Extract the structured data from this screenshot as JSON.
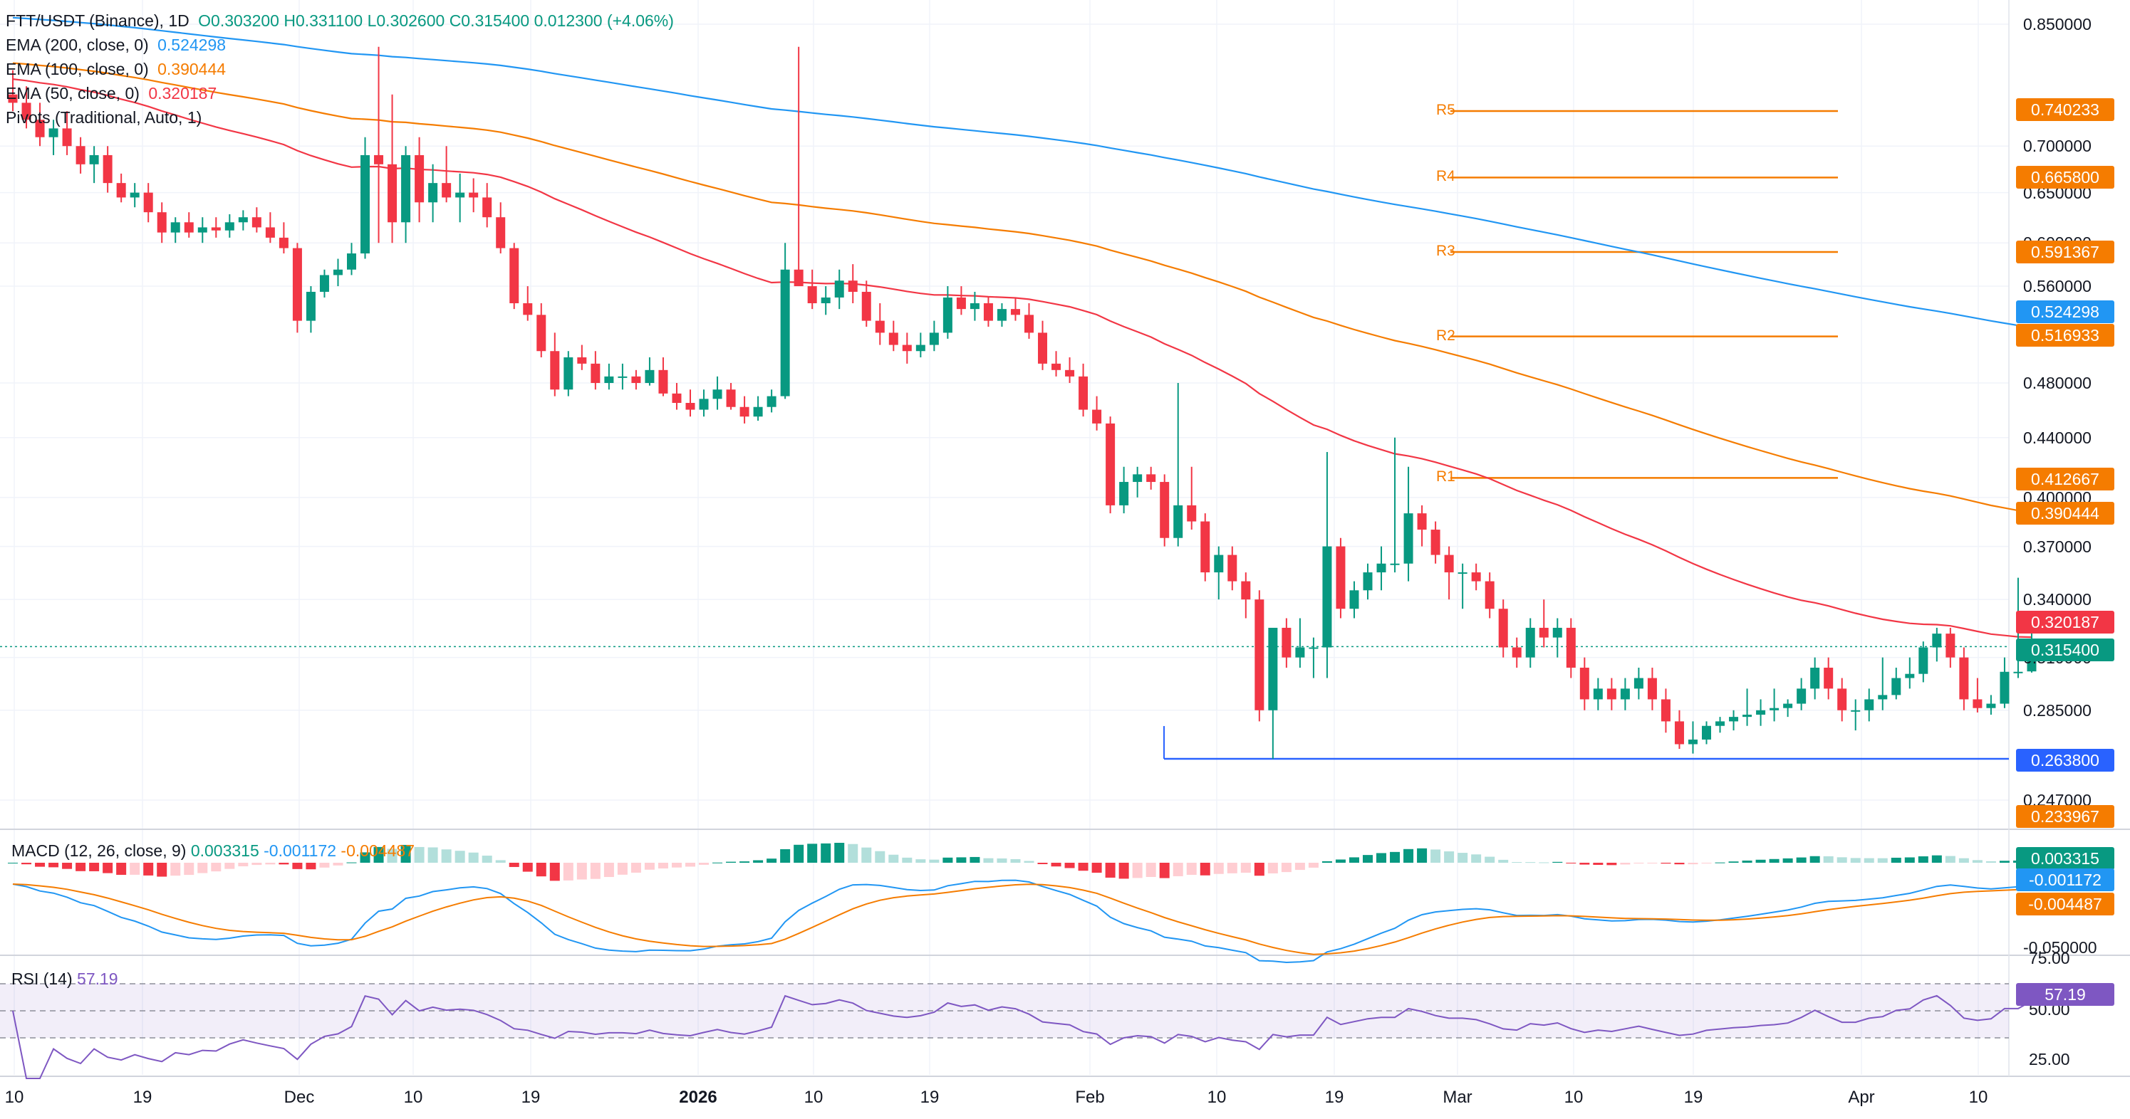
{
  "header": {
    "symbol": "FTT/USDT (Binance), 1D",
    "ohlc": "O0.303200  H0.331100  L0.302600  C0.315400  0.012300 (+4.06%)"
  },
  "indicators": {
    "ema200": {
      "label": "EMA (200, close, 0)",
      "value": "0.524298",
      "color": "#2196f3"
    },
    "ema100": {
      "label": "EMA (100, close, 0)",
      "value": "0.390444",
      "color": "#f57c00"
    },
    "ema50": {
      "label": "EMA (50, close, 0)",
      "value": "0.320187",
      "color": "#f23645"
    },
    "pivots": {
      "label": "Pivots (Traditional, Auto, 1)"
    },
    "macd": {
      "label": "MACD (12, 26, close, 9)",
      "hist": "0.003315",
      "macd": "-0.001172",
      "signal": "-0.004487"
    },
    "rsi": {
      "label": "RSI (14)",
      "value": "57.19"
    }
  },
  "price_axis": {
    "ticks": [
      "0.850000",
      "0.700000",
      "0.650000",
      "0.600000",
      "0.560000",
      "0.480000",
      "0.440000",
      "0.400000",
      "0.370000",
      "0.340000",
      "0.310000",
      "0.285000",
      "0.247000"
    ],
    "tags": [
      {
        "value": "0.740233",
        "color": "#f57c00"
      },
      {
        "value": "0.665800",
        "color": "#f57c00"
      },
      {
        "value": "0.591367",
        "color": "#f57c00"
      },
      {
        "value": "0.524298",
        "color": "#2196f3"
      },
      {
        "value": "0.516933",
        "color": "#f57c00"
      },
      {
        "value": "0.412667",
        "color": "#f57c00"
      },
      {
        "value": "0.390444",
        "color": "#f57c00"
      },
      {
        "value": "0.320187",
        "color": "#f23645"
      },
      {
        "value": "0.315400",
        "color": "#089981"
      },
      {
        "value": "0.263800",
        "color": "#2962ff"
      },
      {
        "value": "0.233967",
        "color": "#f57c00"
      }
    ]
  },
  "macd_axis": {
    "ticks": [
      "-0.050000"
    ],
    "tags": [
      {
        "value": "0.003315",
        "color": "#089981"
      },
      {
        "value": "-0.001172",
        "color": "#2196f3"
      },
      {
        "value": "-0.004487",
        "color": "#f57c00"
      }
    ]
  },
  "rsi_axis": {
    "ticks": [
      "75.00",
      "50.00",
      "25.00"
    ],
    "tags": [
      {
        "value": "57.19",
        "color": "#7e57c2"
      }
    ]
  },
  "pivots": [
    {
      "label": "R5",
      "value": 0.740233
    },
    {
      "label": "R4",
      "value": 0.6658
    },
    {
      "label": "R3",
      "value": 0.591367
    },
    {
      "label": "R2",
      "value": 0.516933
    },
    {
      "label": "R1",
      "value": 0.412667
    }
  ],
  "time_axis": [
    {
      "label": "10",
      "bold": false
    },
    {
      "label": "19",
      "bold": false
    },
    {
      "label": "Dec",
      "bold": false
    },
    {
      "label": "10",
      "bold": false
    },
    {
      "label": "19",
      "bold": false
    },
    {
      "label": "2026",
      "bold": true
    },
    {
      "label": "10",
      "bold": false
    },
    {
      "label": "19",
      "bold": false
    },
    {
      "label": "Feb",
      "bold": false
    },
    {
      "label": "10",
      "bold": false
    },
    {
      "label": "19",
      "bold": false
    },
    {
      "label": "Mar",
      "bold": false
    },
    {
      "label": "10",
      "bold": false
    },
    {
      "label": "19",
      "bold": false
    },
    {
      "label": "Apr",
      "bold": false
    },
    {
      "label": "10",
      "bold": false
    }
  ],
  "chart_data": {
    "type": "candlestick",
    "symbol": "FTT/USDT",
    "interval": "1D",
    "scale": "log",
    "x_start": "2025-11-10",
    "candles": [
      [
        0.76,
        0.79,
        0.74,
        0.75
      ],
      [
        0.75,
        0.77,
        0.72,
        0.73
      ],
      [
        0.73,
        0.75,
        0.7,
        0.71
      ],
      [
        0.71,
        0.73,
        0.69,
        0.72
      ],
      [
        0.72,
        0.74,
        0.69,
        0.7
      ],
      [
        0.7,
        0.71,
        0.67,
        0.68
      ],
      [
        0.68,
        0.7,
        0.66,
        0.69
      ],
      [
        0.69,
        0.7,
        0.65,
        0.66
      ],
      [
        0.66,
        0.67,
        0.64,
        0.645
      ],
      [
        0.645,
        0.66,
        0.635,
        0.65
      ],
      [
        0.65,
        0.66,
        0.62,
        0.63
      ],
      [
        0.63,
        0.64,
        0.6,
        0.61
      ],
      [
        0.61,
        0.625,
        0.6,
        0.62
      ],
      [
        0.62,
        0.63,
        0.605,
        0.61
      ],
      [
        0.61,
        0.625,
        0.6,
        0.615
      ],
      [
        0.615,
        0.625,
        0.605,
        0.612
      ],
      [
        0.612,
        0.628,
        0.605,
        0.62
      ],
      [
        0.62,
        0.632,
        0.612,
        0.625
      ],
      [
        0.625,
        0.635,
        0.61,
        0.615
      ],
      [
        0.615,
        0.63,
        0.6,
        0.605
      ],
      [
        0.605,
        0.62,
        0.59,
        0.595
      ],
      [
        0.595,
        0.6,
        0.52,
        0.53
      ],
      [
        0.53,
        0.56,
        0.52,
        0.555
      ],
      [
        0.555,
        0.575,
        0.55,
        0.57
      ],
      [
        0.57,
        0.585,
        0.56,
        0.575
      ],
      [
        0.575,
        0.6,
        0.57,
        0.59
      ],
      [
        0.59,
        0.71,
        0.585,
        0.69
      ],
      [
        0.69,
        0.82,
        0.6,
        0.68
      ],
      [
        0.68,
        0.76,
        0.6,
        0.62
      ],
      [
        0.62,
        0.7,
        0.6,
        0.69
      ],
      [
        0.69,
        0.71,
        0.62,
        0.64
      ],
      [
        0.64,
        0.68,
        0.62,
        0.66
      ],
      [
        0.66,
        0.7,
        0.64,
        0.645
      ],
      [
        0.645,
        0.67,
        0.62,
        0.65
      ],
      [
        0.65,
        0.665,
        0.63,
        0.645
      ],
      [
        0.645,
        0.66,
        0.615,
        0.625
      ],
      [
        0.625,
        0.64,
        0.59,
        0.595
      ],
      [
        0.595,
        0.6,
        0.54,
        0.545
      ],
      [
        0.545,
        0.56,
        0.53,
        0.535
      ],
      [
        0.535,
        0.545,
        0.5,
        0.505
      ],
      [
        0.505,
        0.52,
        0.47,
        0.475
      ],
      [
        0.475,
        0.505,
        0.47,
        0.5
      ],
      [
        0.5,
        0.51,
        0.49,
        0.495
      ],
      [
        0.495,
        0.505,
        0.475,
        0.48
      ],
      [
        0.48,
        0.495,
        0.475,
        0.485
      ],
      [
        0.485,
        0.495,
        0.475,
        0.485
      ],
      [
        0.485,
        0.49,
        0.475,
        0.48
      ],
      [
        0.48,
        0.5,
        0.478,
        0.49
      ],
      [
        0.49,
        0.5,
        0.47,
        0.472
      ],
      [
        0.472,
        0.48,
        0.46,
        0.465
      ],
      [
        0.465,
        0.475,
        0.455,
        0.46
      ],
      [
        0.46,
        0.475,
        0.455,
        0.468
      ],
      [
        0.468,
        0.485,
        0.46,
        0.475
      ],
      [
        0.475,
        0.48,
        0.46,
        0.462
      ],
      [
        0.462,
        0.47,
        0.45,
        0.455
      ],
      [
        0.455,
        0.47,
        0.452,
        0.462
      ],
      [
        0.462,
        0.475,
        0.458,
        0.47
      ],
      [
        0.47,
        0.6,
        0.468,
        0.575
      ],
      [
        0.575,
        0.82,
        0.56,
        0.56
      ],
      [
        0.56,
        0.575,
        0.54,
        0.545
      ],
      [
        0.545,
        0.56,
        0.535,
        0.55
      ],
      [
        0.55,
        0.575,
        0.54,
        0.565
      ],
      [
        0.565,
        0.58,
        0.545,
        0.555
      ],
      [
        0.555,
        0.565,
        0.525,
        0.53
      ],
      [
        0.53,
        0.545,
        0.51,
        0.52
      ],
      [
        0.52,
        0.53,
        0.505,
        0.51
      ],
      [
        0.51,
        0.52,
        0.495,
        0.505
      ],
      [
        0.505,
        0.52,
        0.5,
        0.51
      ],
      [
        0.51,
        0.53,
        0.505,
        0.52
      ],
      [
        0.52,
        0.56,
        0.515,
        0.55
      ],
      [
        0.55,
        0.56,
        0.535,
        0.54
      ],
      [
        0.54,
        0.555,
        0.53,
        0.545
      ],
      [
        0.545,
        0.55,
        0.525,
        0.53
      ],
      [
        0.53,
        0.545,
        0.525,
        0.54
      ],
      [
        0.54,
        0.55,
        0.53,
        0.535
      ],
      [
        0.535,
        0.545,
        0.515,
        0.52
      ],
      [
        0.52,
        0.53,
        0.49,
        0.495
      ],
      [
        0.495,
        0.505,
        0.485,
        0.49
      ],
      [
        0.49,
        0.5,
        0.48,
        0.485
      ],
      [
        0.485,
        0.495,
        0.455,
        0.46
      ],
      [
        0.46,
        0.47,
        0.445,
        0.45
      ],
      [
        0.45,
        0.455,
        0.39,
        0.395
      ],
      [
        0.395,
        0.42,
        0.39,
        0.41
      ],
      [
        0.41,
        0.42,
        0.4,
        0.415
      ],
      [
        0.415,
        0.42,
        0.405,
        0.41
      ],
      [
        0.41,
        0.415,
        0.37,
        0.375
      ],
      [
        0.375,
        0.48,
        0.37,
        0.395
      ],
      [
        0.395,
        0.42,
        0.38,
        0.385
      ],
      [
        0.385,
        0.39,
        0.35,
        0.355
      ],
      [
        0.355,
        0.37,
        0.34,
        0.365
      ],
      [
        0.365,
        0.37,
        0.345,
        0.35
      ],
      [
        0.35,
        0.355,
        0.33,
        0.34
      ],
      [
        0.34,
        0.345,
        0.28,
        0.285
      ],
      [
        0.285,
        0.325,
        0.2638,
        0.325
      ],
      [
        0.325,
        0.33,
        0.305,
        0.31
      ],
      [
        0.31,
        0.33,
        0.305,
        0.315
      ],
      [
        0.315,
        0.32,
        0.3,
        0.315
      ],
      [
        0.315,
        0.43,
        0.3,
        0.37
      ],
      [
        0.37,
        0.375,
        0.33,
        0.335
      ],
      [
        0.335,
        0.35,
        0.33,
        0.345
      ],
      [
        0.345,
        0.36,
        0.34,
        0.355
      ],
      [
        0.355,
        0.37,
        0.345,
        0.36
      ],
      [
        0.36,
        0.44,
        0.355,
        0.36
      ],
      [
        0.36,
        0.42,
        0.35,
        0.39
      ],
      [
        0.39,
        0.395,
        0.37,
        0.38
      ],
      [
        0.38,
        0.385,
        0.36,
        0.365
      ],
      [
        0.365,
        0.37,
        0.34,
        0.355
      ],
      [
        0.355,
        0.36,
        0.335,
        0.355
      ],
      [
        0.355,
        0.36,
        0.345,
        0.35
      ],
      [
        0.35,
        0.355,
        0.33,
        0.335
      ],
      [
        0.335,
        0.34,
        0.31,
        0.315
      ],
      [
        0.315,
        0.32,
        0.305,
        0.31
      ],
      [
        0.31,
        0.33,
        0.305,
        0.325
      ],
      [
        0.325,
        0.34,
        0.315,
        0.32
      ],
      [
        0.32,
        0.33,
        0.31,
        0.325
      ],
      [
        0.325,
        0.33,
        0.3,
        0.305
      ],
      [
        0.305,
        0.31,
        0.285,
        0.29
      ],
      [
        0.29,
        0.3,
        0.285,
        0.295
      ],
      [
        0.295,
        0.3,
        0.285,
        0.29
      ],
      [
        0.29,
        0.3,
        0.285,
        0.295
      ],
      [
        0.295,
        0.305,
        0.29,
        0.3
      ],
      [
        0.3,
        0.305,
        0.285,
        0.29
      ],
      [
        0.29,
        0.295,
        0.275,
        0.28
      ],
      [
        0.28,
        0.285,
        0.268,
        0.27
      ],
      [
        0.27,
        0.28,
        0.266,
        0.272
      ],
      [
        0.272,
        0.28,
        0.27,
        0.278
      ],
      [
        0.278,
        0.282,
        0.275,
        0.28
      ],
      [
        0.28,
        0.285,
        0.276,
        0.282
      ],
      [
        0.282,
        0.295,
        0.278,
        0.283
      ],
      [
        0.283,
        0.29,
        0.278,
        0.285
      ],
      [
        0.285,
        0.295,
        0.28,
        0.286
      ],
      [
        0.286,
        0.29,
        0.282,
        0.288
      ],
      [
        0.288,
        0.3,
        0.285,
        0.295
      ],
      [
        0.295,
        0.31,
        0.29,
        0.305
      ],
      [
        0.305,
        0.31,
        0.29,
        0.295
      ],
      [
        0.295,
        0.3,
        0.28,
        0.285
      ],
      [
        0.285,
        0.29,
        0.276,
        0.285
      ],
      [
        0.285,
        0.295,
        0.28,
        0.29
      ],
      [
        0.29,
        0.31,
        0.285,
        0.292
      ],
      [
        0.292,
        0.305,
        0.29,
        0.3
      ],
      [
        0.3,
        0.31,
        0.295,
        0.302
      ],
      [
        0.302,
        0.318,
        0.298,
        0.315
      ],
      [
        0.315,
        0.325,
        0.308,
        0.322
      ],
      [
        0.322,
        0.325,
        0.305,
        0.31
      ],
      [
        0.31,
        0.315,
        0.285,
        0.29
      ],
      [
        0.29,
        0.3,
        0.284,
        0.286
      ],
      [
        0.286,
        0.292,
        0.283,
        0.288
      ],
      [
        0.288,
        0.31,
        0.286,
        0.303
      ],
      [
        0.303,
        0.352,
        0.3,
        0.303
      ],
      [
        0.3032,
        0.3311,
        0.3026,
        0.3154
      ]
    ],
    "ema": [
      {
        "name": "EMA (200, close, 0)",
        "last": 0.524298
      },
      {
        "name": "EMA (100, close, 0)",
        "last": 0.390444
      },
      {
        "name": "EMA (50, close, 0)",
        "last": 0.320187
      }
    ],
    "support_level": 0.2638,
    "last_close": 0.3154,
    "macd_last": {
      "histogram": 0.003315,
      "macd": -0.001172,
      "signal": -0.004487
    },
    "rsi_last": 57.19,
    "rsi_band": [
      30,
      70
    ]
  }
}
